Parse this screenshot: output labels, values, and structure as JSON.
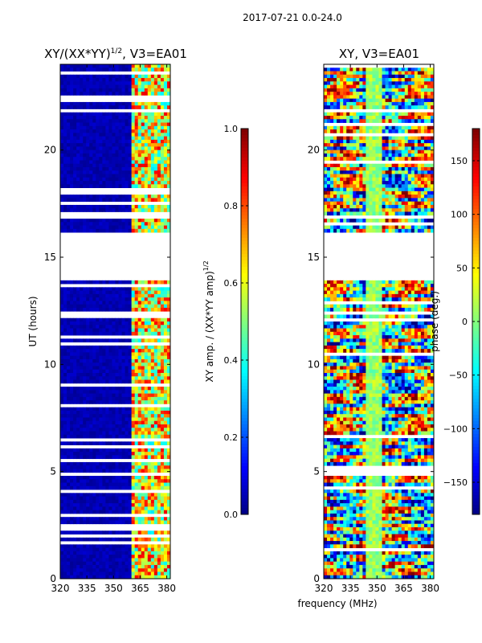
{
  "suptitle": "2017-07-21 0.0-24.0",
  "chart_data": [
    {
      "type": "heatmap",
      "title": "XY/(XX*YY)",
      "title_sup": "1/2",
      "title_suffix": ", V3=EA01",
      "xlabel": "",
      "ylabel": "UT (hours)",
      "xlim": [
        320,
        382
      ],
      "ylim": [
        0,
        24
      ],
      "xticks": [
        "320",
        "335",
        "350",
        "365",
        "380"
      ],
      "xtick_values": [
        320,
        335,
        350,
        365,
        380
      ],
      "yticks": [
        "0",
        "5",
        "10",
        "15",
        "20"
      ],
      "ytick_values": [
        0,
        5,
        10,
        15,
        20
      ],
      "colorbar": {
        "label": "XY amp. / (XX*YY amp)",
        "label_sup": "1/2",
        "range": [
          0.0,
          1.0
        ],
        "ticks": [
          "0.0",
          "0.2",
          "0.4",
          "0.6",
          "0.8",
          "1.0"
        ],
        "tick_values": [
          0.0,
          0.2,
          0.4,
          0.6,
          0.8,
          1.0
        ]
      },
      "colormap": "jet",
      "flagged_gap_hours": [
        [
          14.0,
          16.2
        ]
      ]
    },
    {
      "type": "heatmap",
      "title": "XY, V3=EA01",
      "xlabel": "frequency (MHz)",
      "ylabel": "",
      "xlim": [
        320,
        382
      ],
      "ylim": [
        0,
        24
      ],
      "xticks": [
        "320",
        "335",
        "350",
        "365",
        "380"
      ],
      "xtick_values": [
        320,
        335,
        350,
        365,
        380
      ],
      "yticks": [
        "0",
        "5",
        "10",
        "15",
        "20"
      ],
      "ytick_values": [
        0,
        5,
        10,
        15,
        20
      ],
      "colorbar": {
        "label": "phase (deg.)",
        "range": [
          -180,
          180
        ],
        "ticks": [
          "−150",
          "−100",
          "−50",
          "0",
          "50",
          "100",
          "150"
        ],
        "tick_values": [
          -150,
          -100,
          -50,
          0,
          50,
          100,
          150
        ]
      },
      "colormap": "jet",
      "flagged_gap_hours": [
        [
          14.0,
          16.2
        ]
      ]
    }
  ]
}
